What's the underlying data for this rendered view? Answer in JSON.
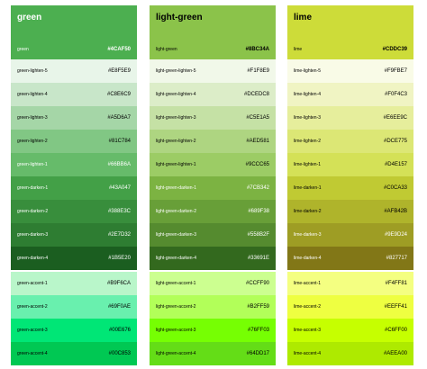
{
  "palettes": [
    {
      "name": "green",
      "base": {
        "label": "green",
        "hex": "#4CAF50",
        "text": "#ffffff"
      },
      "shades": [
        {
          "label": "green-lighten-5",
          "hex": "#E8F5E9",
          "text": "#000000"
        },
        {
          "label": "green-lighten-4",
          "hex": "#C8E6C9",
          "text": "#000000"
        },
        {
          "label": "green-lighten-3",
          "hex": "#A5D6A7",
          "text": "#000000"
        },
        {
          "label": "green-lighten-2",
          "hex": "#81C784",
          "text": "#000000"
        },
        {
          "label": "green-lighten-1",
          "hex": "#66BB6A",
          "text": "#ffffff"
        },
        {
          "label": "green-darken-1",
          "hex": "#43A047",
          "text": "#ffffff"
        },
        {
          "label": "green-darken-2",
          "hex": "#388E3C",
          "text": "#ffffff"
        },
        {
          "label": "green-darken-3",
          "hex": "#2E7D32",
          "text": "#ffffff"
        },
        {
          "label": "green-darken-4",
          "hex": "#1B5E20",
          "text": "#ffffff"
        },
        {
          "label": "green-accent-1",
          "hex": "#B9F6CA",
          "text": "#000000"
        },
        {
          "label": "green-accent-2",
          "hex": "#69F0AE",
          "text": "#000000"
        },
        {
          "label": "green-accent-3",
          "hex": "#00E676",
          "text": "#000000"
        },
        {
          "label": "green-accent-4",
          "hex": "#00C853",
          "text": "#000000"
        }
      ]
    },
    {
      "name": "light-green",
      "base": {
        "label": "light-green",
        "hex": "#8BC34A",
        "text": "#000000"
      },
      "shades": [
        {
          "label": "light-green-lighten-5",
          "hex": "#F1F8E9",
          "text": "#000000"
        },
        {
          "label": "light-green-lighten-4",
          "hex": "#DCEDC8",
          "text": "#000000"
        },
        {
          "label": "light-green-lighten-3",
          "hex": "#C5E1A5",
          "text": "#000000"
        },
        {
          "label": "light-green-lighten-2",
          "hex": "#AED581",
          "text": "#000000"
        },
        {
          "label": "light-green-lighten-1",
          "hex": "#9CCC65",
          "text": "#000000"
        },
        {
          "label": "light-green-darken-1",
          "hex": "#7CB342",
          "text": "#ffffff"
        },
        {
          "label": "light-green-darken-2",
          "hex": "#689F38",
          "text": "#ffffff"
        },
        {
          "label": "light-green-darken-3",
          "hex": "#558B2F",
          "text": "#ffffff"
        },
        {
          "label": "light-green-darken-4",
          "hex": "#33691E",
          "text": "#ffffff"
        },
        {
          "label": "light-green-accent-1",
          "hex": "#CCFF90",
          "text": "#000000"
        },
        {
          "label": "light-green-accent-2",
          "hex": "#B2FF59",
          "text": "#000000"
        },
        {
          "label": "light-green-accent-3",
          "hex": "#76FF03",
          "text": "#000000"
        },
        {
          "label": "light-green-accent-4",
          "hex": "#64DD17",
          "text": "#000000"
        }
      ]
    },
    {
      "name": "lime",
      "base": {
        "label": "lime",
        "hex": "#CDDC39",
        "text": "#000000"
      },
      "shades": [
        {
          "label": "lime-lighten-5",
          "hex": "#F9FBE7",
          "text": "#000000"
        },
        {
          "label": "lime-lighten-4",
          "hex": "#F0F4C3",
          "text": "#000000"
        },
        {
          "label": "lime-lighten-3",
          "hex": "#E6EE9C",
          "text": "#000000"
        },
        {
          "label": "lime-lighten-2",
          "hex": "#DCE775",
          "text": "#000000"
        },
        {
          "label": "lime-lighten-1",
          "hex": "#D4E157",
          "text": "#000000"
        },
        {
          "label": "lime-darken-1",
          "hex": "#C0CA33",
          "text": "#000000"
        },
        {
          "label": "lime-darken-2",
          "hex": "#AFB42B",
          "text": "#000000"
        },
        {
          "label": "lime-darken-3",
          "hex": "#9E9D24",
          "text": "#ffffff"
        },
        {
          "label": "lime-darken-4",
          "hex": "#827717",
          "text": "#ffffff"
        },
        {
          "label": "lime-accent-1",
          "hex": "#F4FF81",
          "text": "#000000"
        },
        {
          "label": "lime-accent-2",
          "hex": "#EEFF41",
          "text": "#000000"
        },
        {
          "label": "lime-accent-3",
          "hex": "#C6FF00",
          "text": "#000000"
        },
        {
          "label": "lime-accent-4",
          "hex": "#AEEA00",
          "text": "#000000"
        }
      ]
    }
  ]
}
